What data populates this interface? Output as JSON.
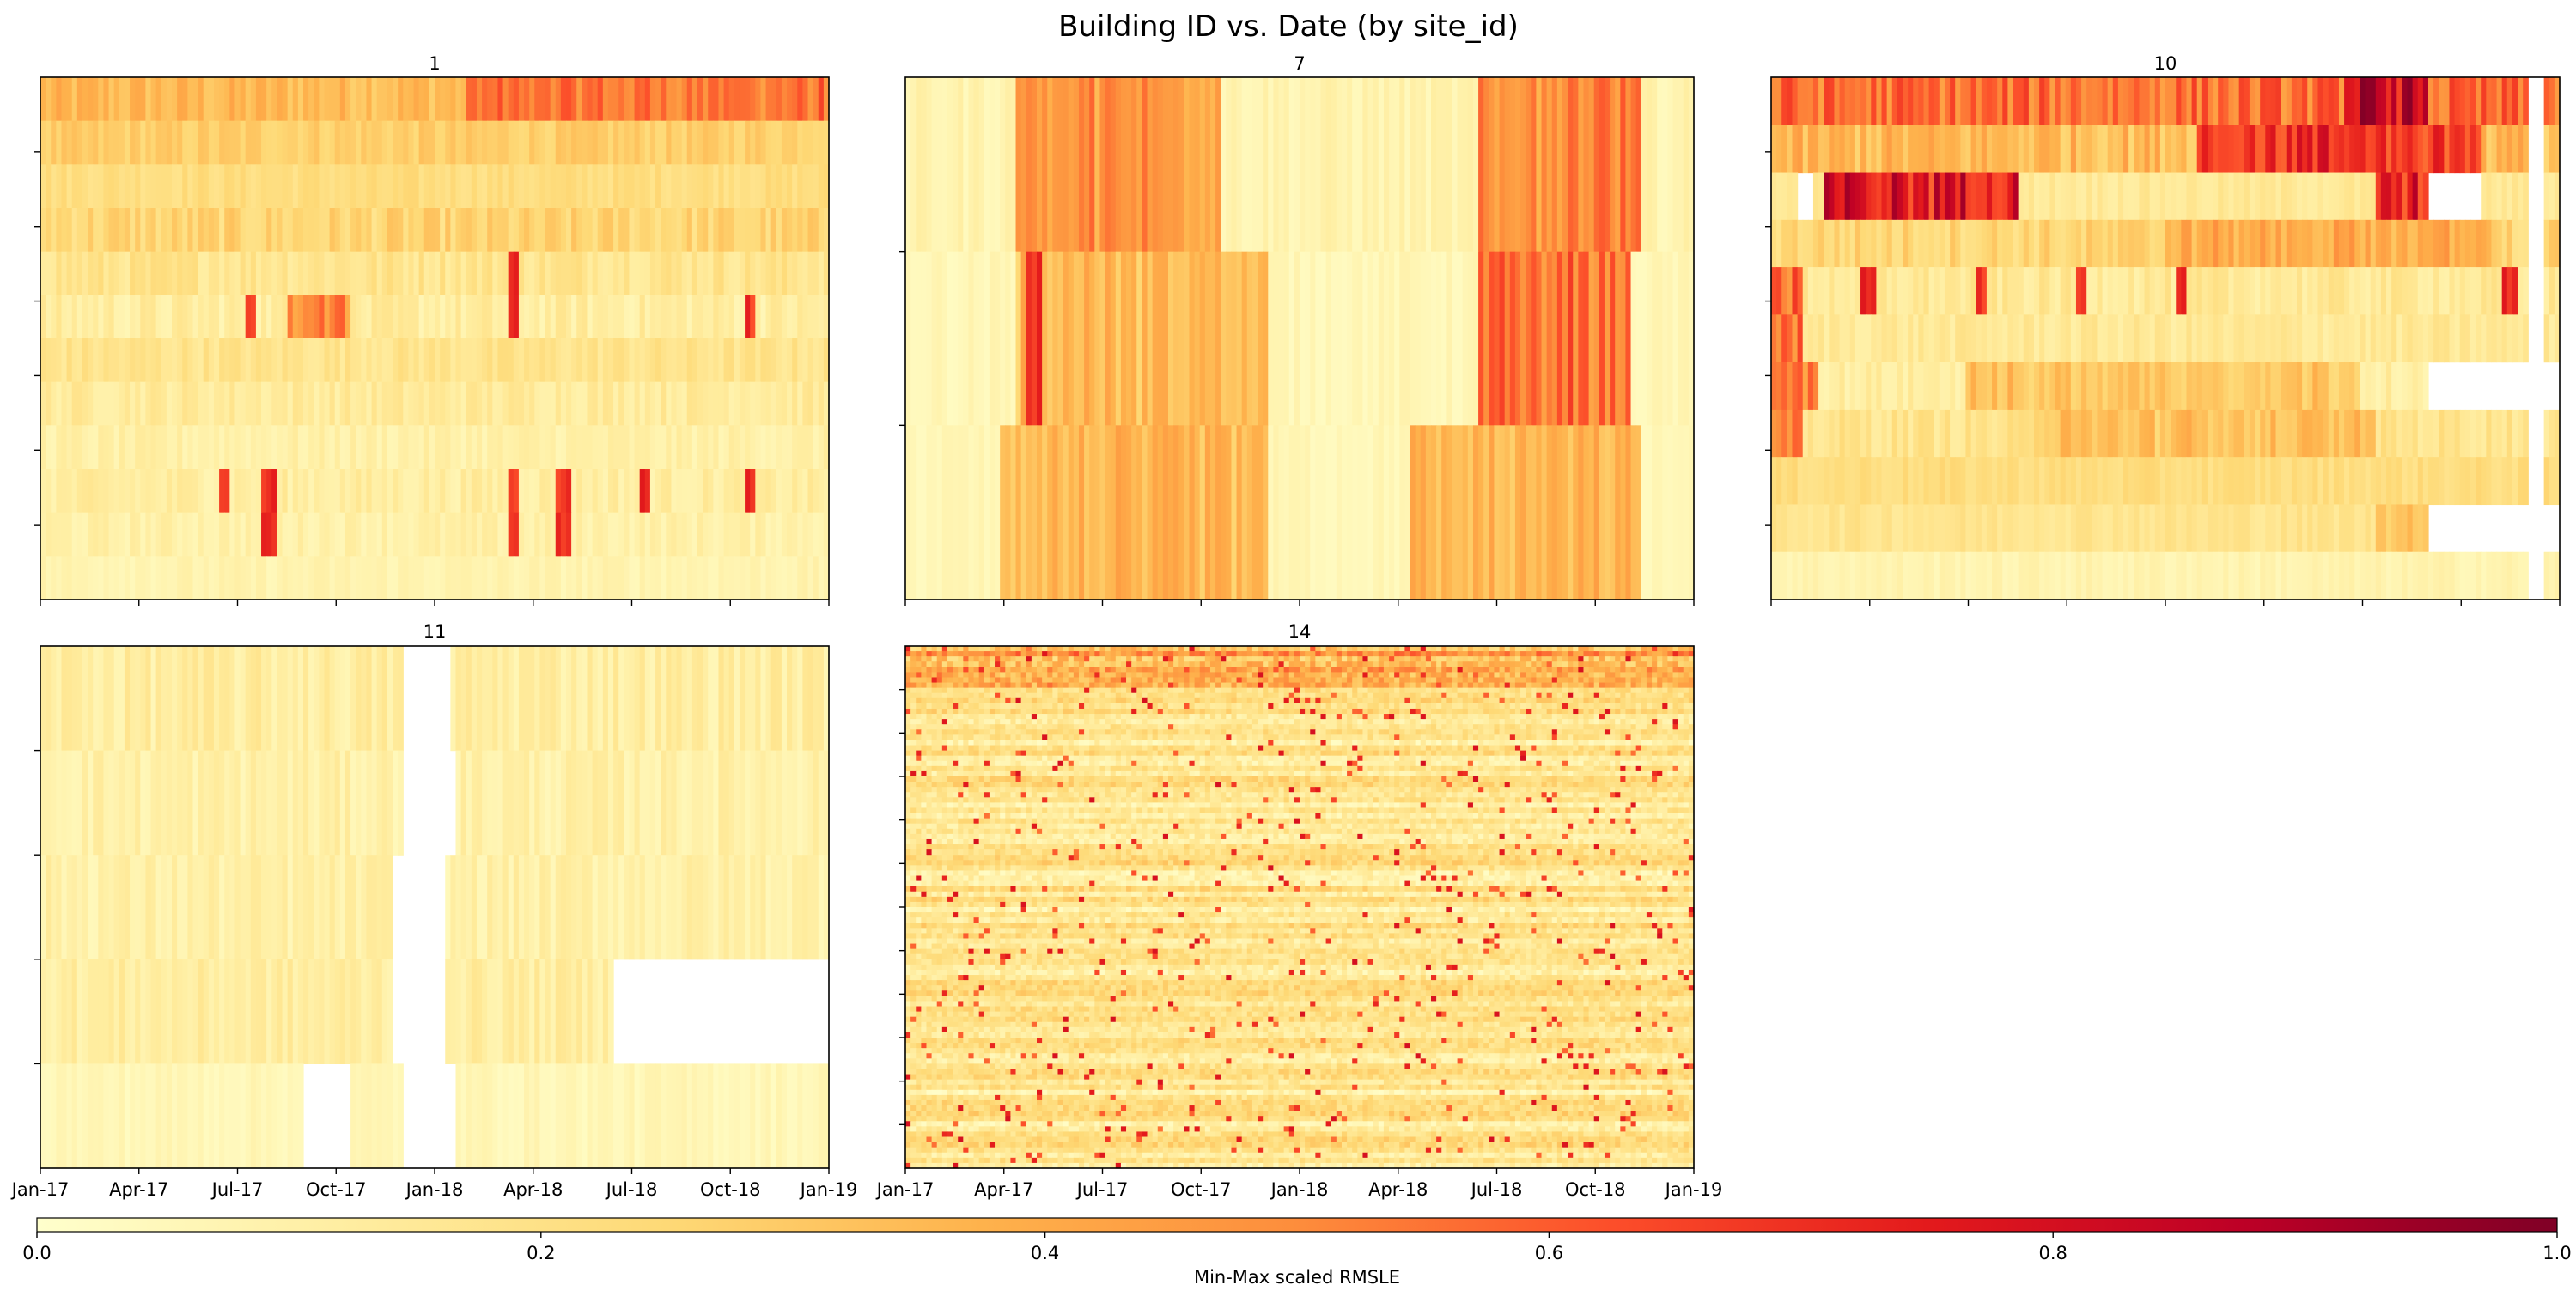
{
  "chart_data": {
    "type": "heatmap",
    "title": "Building ID vs. Date (by site_id)",
    "x_axis": {
      "type": "date",
      "xlim": [
        "2017-01-01",
        "2019-01-01"
      ],
      "tick_labels": [
        "Jan-17",
        "Apr-17",
        "Jul-17",
        "Oct-17",
        "Jan-18",
        "Apr-18",
        "Jul-18",
        "Oct-18",
        "Jan-19"
      ]
    },
    "y_axis": {
      "label": "",
      "tick_labels_shown": false
    },
    "colormap": "YlOrRd",
    "colorbar": {
      "label": "Min-Max scaled RMSLE",
      "range": [
        0,
        1
      ],
      "ticks": [
        "0.0",
        "0.2",
        "0.4",
        "0.6",
        "0.8",
        "1.0"
      ],
      "colors": [
        "#ffffcc",
        "#ffeda0",
        "#fed976",
        "#feb24c",
        "#fd8d3c",
        "#fc4e2a",
        "#e31a1c",
        "#bd0026",
        "#800026"
      ]
    },
    "panels": [
      {
        "name": "1",
        "buildings": 12,
        "rows": [
          {
            "base": 0.35,
            "var": 0.15,
            "hot": [
              [
                "2018-02-01",
                "2018-12-31",
                0.2
              ]
            ]
          },
          {
            "base": 0.28,
            "var": 0.1
          },
          {
            "base": 0.22,
            "var": 0.08
          },
          {
            "base": 0.25,
            "var": 0.15
          },
          {
            "base": 0.18,
            "var": 0.12,
            "spikes": [
              "2018-03-15"
            ]
          },
          {
            "base": 0.12,
            "var": 0.12,
            "hot": [
              [
                "2017-08-20",
                "2017-10-15",
                0.45
              ]
            ],
            "spikes": [
              "2017-07-15",
              "2018-03-15",
              "2018-10-20"
            ]
          },
          {
            "base": 0.18,
            "var": 0.1
          },
          {
            "base": 0.14,
            "var": 0.1
          },
          {
            "base": 0.1,
            "var": 0.08
          },
          {
            "base": 0.12,
            "var": 0.1,
            "spikes": [
              "2017-06-20",
              "2017-08-01",
              "2018-03-15",
              "2018-05-01",
              "2018-07-15",
              "2018-10-20"
            ]
          },
          {
            "base": 0.1,
            "var": 0.08,
            "spikes": [
              "2017-08-01",
              "2018-03-15",
              "2018-05-01"
            ]
          },
          {
            "base": 0.08,
            "var": 0.06
          }
        ]
      },
      {
        "name": "7",
        "buildings": 3,
        "rows": [
          {
            "base": 0.08,
            "var": 0.08,
            "hot": [
              [
                "2017-04-15",
                "2017-10-20",
                0.4
              ],
              [
                "2018-06-15",
                "2018-11-15",
                0.45
              ]
            ]
          },
          {
            "base": 0.06,
            "var": 0.06,
            "hot": [
              [
                "2017-04-15",
                "2017-12-01",
                0.3
              ],
              [
                "2018-06-15",
                "2018-11-05",
                0.5
              ]
            ],
            "spikes": [
              "2017-05-01"
            ]
          },
          {
            "base": 0.06,
            "var": 0.06,
            "hot": [
              [
                "2017-04-01",
                "2017-12-01",
                0.3
              ],
              [
                "2018-04-15",
                "2018-11-15",
                0.3
              ]
            ]
          }
        ]
      },
      {
        "name": "10",
        "buildings": 11,
        "rows": [
          {
            "base": 0.55,
            "var": 0.25,
            "hot": [
              [
                "2018-06-15",
                "2018-09-01",
                0.3
              ]
            ],
            "gaps": [
              [
                "2018-12-01",
                "2018-12-15"
              ]
            ]
          },
          {
            "base": 0.35,
            "var": 0.2,
            "hot": [
              [
                "2018-02-01",
                "2018-10-20",
                0.35
              ]
            ],
            "gaps": [
              [
                "2018-12-01",
                "2018-12-15"
              ]
            ]
          },
          {
            "base": 0.15,
            "var": 0.08,
            "hot": [
              [
                "2017-02-20",
                "2017-08-20",
                0.65
              ],
              [
                "2018-07-15",
                "2018-09-01",
                0.6
              ]
            ],
            "gaps": [
              [
                "2017-01-25",
                "2017-02-10"
              ],
              [
                "2018-09-01",
                "2018-10-20"
              ],
              [
                "2018-12-01",
                "2018-12-15"
              ]
            ]
          },
          {
            "base": 0.25,
            "var": 0.15,
            "hot": [
              [
                "2018-01-01",
                "2018-10-31",
                0.15
              ]
            ],
            "gaps": [
              [
                "2018-12-01",
                "2018-12-15"
              ]
            ]
          },
          {
            "base": 0.15,
            "var": 0.12,
            "hot": [
              [
                "2017-01-01",
                "2017-02-01",
                0.45
              ]
            ],
            "spikes": [
              "2017-04-01",
              "2017-07-15",
              "2017-10-15",
              "2018-01-15",
              "2018-11-15"
            ],
            "gaps": [
              [
                "2018-12-01",
                "2018-12-15"
              ]
            ]
          },
          {
            "base": 0.15,
            "var": 0.1,
            "hot": [
              [
                "2017-01-01",
                "2017-02-01",
                0.4
              ]
            ],
            "gaps": [
              [
                "2018-12-01",
                "2018-12-15"
              ]
            ]
          },
          {
            "base": 0.12,
            "var": 0.1,
            "hot": [
              [
                "2017-01-01",
                "2017-02-15",
                0.45
              ],
              [
                "2017-07-01",
                "2018-07-01",
                0.2
              ]
            ],
            "gaps": [
              [
                "2018-09-01",
                "2019-01-01"
              ]
            ]
          },
          {
            "base": 0.18,
            "var": 0.12,
            "hot": [
              [
                "2017-01-01",
                "2017-02-01",
                0.3
              ],
              [
                "2017-09-01",
                "2018-07-15",
                0.15
              ]
            ],
            "gaps": [
              [
                "2018-12-01",
                "2018-12-15"
              ]
            ]
          },
          {
            "base": 0.22,
            "var": 0.08,
            "gaps": [
              [
                "2018-12-01",
                "2018-12-15"
              ]
            ]
          },
          {
            "base": 0.18,
            "var": 0.08,
            "hot": [
              [
                "2018-07-15",
                "2018-09-01",
                0.15
              ]
            ],
            "gaps": [
              [
                "2018-09-01",
                "2019-01-01"
              ]
            ]
          },
          {
            "base": 0.08,
            "var": 0.06,
            "gaps": [
              [
                "2018-12-01",
                "2018-12-15"
              ]
            ]
          }
        ]
      },
      {
        "name": "11",
        "buildings": 5,
        "rows": [
          {
            "base": 0.12,
            "var": 0.12,
            "gaps": [
              [
                "2017-12-01",
                "2018-01-15"
              ]
            ]
          },
          {
            "base": 0.1,
            "var": 0.1,
            "gaps": [
              [
                "2017-12-01",
                "2018-01-20"
              ]
            ]
          },
          {
            "base": 0.1,
            "var": 0.1,
            "gaps": [
              [
                "2017-11-25",
                "2018-01-10"
              ]
            ]
          },
          {
            "base": 0.12,
            "var": 0.1,
            "gaps": [
              [
                "2017-11-25",
                "2018-01-10"
              ],
              [
                "2018-06-15",
                "2019-01-01"
              ]
            ]
          },
          {
            "base": 0.06,
            "var": 0.06,
            "gaps": [
              [
                "2017-09-01",
                "2017-10-15"
              ],
              [
                "2017-12-01",
                "2018-01-20"
              ]
            ]
          }
        ]
      },
      {
        "name": "14",
        "buildings": 100,
        "dense": true,
        "rows": []
      }
    ]
  }
}
